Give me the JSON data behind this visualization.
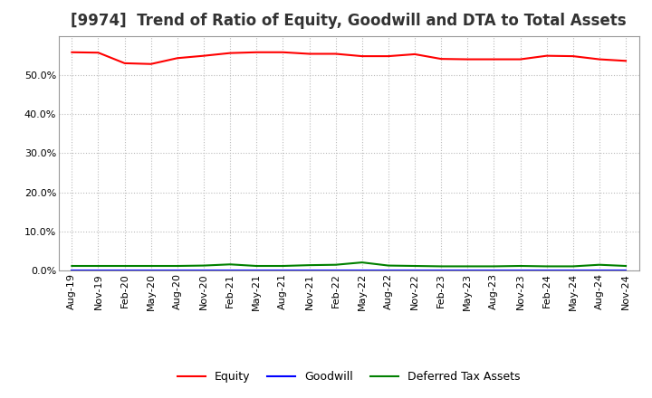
{
  "title": "[9974]  Trend of Ratio of Equity, Goodwill and DTA to Total Assets",
  "x_labels": [
    "Aug-19",
    "Nov-19",
    "Feb-20",
    "May-20",
    "Aug-20",
    "Nov-20",
    "Feb-21",
    "May-21",
    "Aug-21",
    "Nov-21",
    "Feb-22",
    "May-22",
    "Aug-22",
    "Nov-22",
    "Feb-23",
    "May-23",
    "Aug-23",
    "Nov-23",
    "Feb-24",
    "May-24",
    "Aug-24",
    "Nov-24"
  ],
  "equity": [
    0.558,
    0.557,
    0.53,
    0.528,
    0.543,
    0.549,
    0.556,
    0.558,
    0.558,
    0.554,
    0.554,
    0.548,
    0.548,
    0.553,
    0.541,
    0.54,
    0.54,
    0.54,
    0.549,
    0.548,
    0.54,
    0.536
  ],
  "goodwill": [
    0.0,
    0.0,
    0.0,
    0.0,
    0.0,
    0.0,
    0.0,
    0.0,
    0.0,
    0.0,
    0.0,
    0.0,
    0.0,
    0.0,
    0.0,
    0.0,
    0.0,
    0.0,
    0.0,
    0.0,
    0.0,
    0.0
  ],
  "dta": [
    0.012,
    0.012,
    0.012,
    0.012,
    0.012,
    0.013,
    0.016,
    0.012,
    0.012,
    0.014,
    0.015,
    0.021,
    0.013,
    0.012,
    0.011,
    0.011,
    0.011,
    0.012,
    0.011,
    0.011,
    0.015,
    0.012
  ],
  "equity_color": "#ff0000",
  "goodwill_color": "#0000ff",
  "dta_color": "#008000",
  "background_color": "#ffffff",
  "grid_color": "#bbbbbb",
  "ylim": [
    0.0,
    0.6
  ],
  "yticks": [
    0.0,
    0.1,
    0.2,
    0.3,
    0.4,
    0.5
  ],
  "title_fontsize": 12,
  "tick_fontsize": 8,
  "legend_fontsize": 9
}
